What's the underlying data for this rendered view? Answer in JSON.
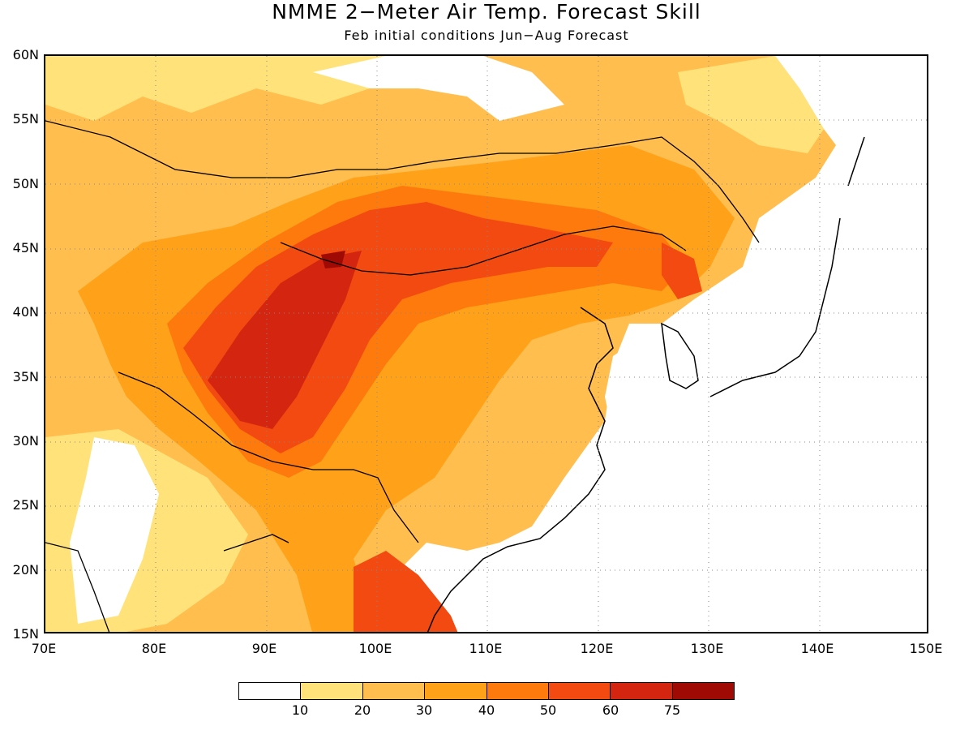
{
  "title": "NMME 2−Meter Air Temp. Forecast Skill",
  "subtitle": "Feb initial conditions  Jun−Aug Forecast",
  "lat_labels": [
    "60N",
    "55N",
    "50N",
    "45N",
    "40N",
    "35N",
    "30N",
    "25N",
    "20N",
    "15N"
  ],
  "lon_labels": [
    "70E",
    "80E",
    "90E",
    "100E",
    "110E",
    "120E",
    "130E",
    "140E",
    "150E"
  ],
  "colorbar": {
    "colors": [
      "#ffffff",
      "#ffe37a",
      "#ffbe4d",
      "#ffa21a",
      "#ff7a0c",
      "#f24a10",
      "#d42510",
      "#a00a05"
    ],
    "labels": [
      "10",
      "20",
      "30",
      "40",
      "50",
      "60",
      "75"
    ]
  }
}
